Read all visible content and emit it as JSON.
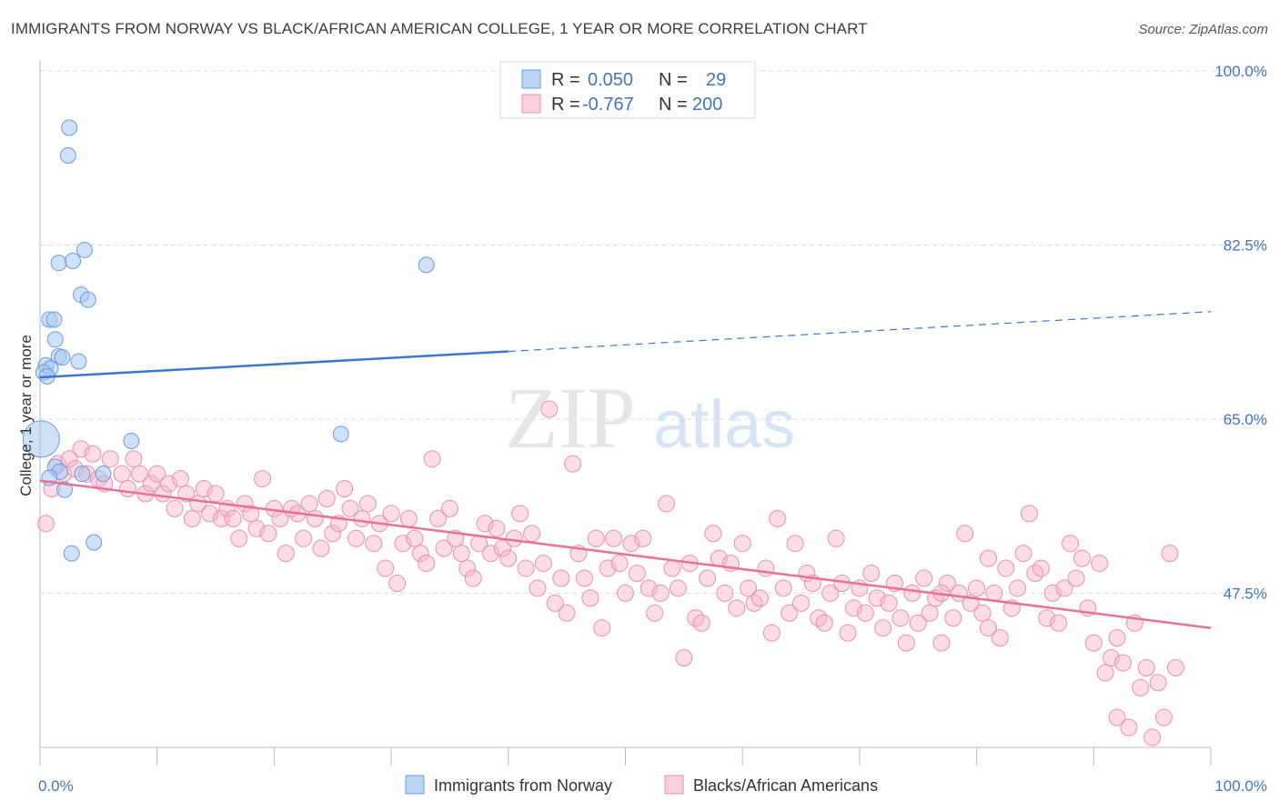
{
  "title": "IMMIGRANTS FROM NORWAY VS BLACK/AFRICAN AMERICAN COLLEGE, 1 YEAR OR MORE CORRELATION CHART",
  "source": "Source: ZipAtlas.com",
  "watermark": {
    "zip": "ZIP",
    "atlas": "atlas"
  },
  "legend": {
    "r_label": "R =",
    "n_label": "N =",
    "rows": [
      {
        "r": "0.050",
        "n": "29",
        "color": "#a9c8f0"
      },
      {
        "r": "-0.767",
        "n": "200",
        "color": "#f8b4c8"
      }
    ]
  },
  "bottom_legend": [
    "Immigrants from Norway",
    "Blacks/African Americans"
  ],
  "chart_data": {
    "type": "scatter",
    "title": "IMMIGRANTS FROM NORWAY VS BLACK/AFRICAN AMERICAN COLLEGE, 1 YEAR OR MORE CORRELATION CHART",
    "xlabel": "",
    "ylabel": "College, 1 year or more",
    "xlim": [
      0,
      100
    ],
    "ylim": [
      32,
      100
    ],
    "y_ticks": [
      47.5,
      65.0,
      82.5,
      100.0
    ],
    "y_tick_labels": [
      "47.5%",
      "65.0%",
      "82.5%",
      "100.0%"
    ],
    "x_tick_labels": [
      "0.0%",
      "100.0%"
    ],
    "grid": "horizontal dashed",
    "legend_position": "top-center",
    "series": [
      {
        "name": "Immigrants from Norway",
        "color": "#a9c8f0",
        "stroke": "#6a9be0",
        "r": 0.05,
        "n": 29,
        "trend": {
          "x0": 0,
          "y0": 69.2,
          "x1": 40,
          "y1": 71.8,
          "dash_x1": 100,
          "dash_y1": 75.8
        },
        "points": [
          [
            2.5,
            94.3
          ],
          [
            2.4,
            91.5
          ],
          [
            1.6,
            80.7
          ],
          [
            3.8,
            82.0
          ],
          [
            2.8,
            80.9
          ],
          [
            33,
            80.5
          ],
          [
            3.5,
            77.5
          ],
          [
            4.1,
            77.0
          ],
          [
            0.8,
            75.0
          ],
          [
            1.2,
            75.0
          ],
          [
            1.3,
            73.0
          ],
          [
            1.6,
            71.3
          ],
          [
            1.9,
            71.2
          ],
          [
            3.3,
            70.8
          ],
          [
            0.5,
            70.4
          ],
          [
            0.9,
            70.1
          ],
          [
            0.3,
            69.7
          ],
          [
            0.6,
            69.3
          ],
          [
            0.1,
            63.0
          ],
          [
            7.8,
            62.8
          ],
          [
            25.7,
            63.5
          ],
          [
            1.3,
            60.2
          ],
          [
            1.7,
            59.7
          ],
          [
            3.6,
            59.5
          ],
          [
            5.4,
            59.5
          ],
          [
            0.8,
            59.1
          ],
          [
            2.1,
            57.9
          ],
          [
            4.6,
            52.6
          ],
          [
            2.7,
            51.5
          ]
        ]
      },
      {
        "name": "Blacks/African Americans",
        "color": "#f8b4c8",
        "stroke": "#e890ac",
        "r": -0.767,
        "n": 200,
        "trend": {
          "x0": 0,
          "y0": 58.8,
          "x1": 100,
          "y1": 44.0
        },
        "points": [
          [
            0.5,
            54.5
          ],
          [
            1.0,
            58.0
          ],
          [
            1.5,
            60.5
          ],
          [
            2.0,
            59.5
          ],
          [
            2.5,
            61.0
          ],
          [
            3.0,
            60.0
          ],
          [
            3.5,
            62.0
          ],
          [
            4.0,
            59.5
          ],
          [
            4.5,
            61.5
          ],
          [
            5.0,
            59.0
          ],
          [
            5.5,
            58.5
          ],
          [
            6.0,
            61.0
          ],
          [
            7.0,
            59.5
          ],
          [
            7.5,
            58.0
          ],
          [
            8.0,
            61.0
          ],
          [
            8.5,
            59.5
          ],
          [
            9.0,
            57.5
          ],
          [
            9.5,
            58.5
          ],
          [
            10.0,
            59.5
          ],
          [
            10.5,
            57.5
          ],
          [
            11.0,
            58.5
          ],
          [
            11.5,
            56.0
          ],
          [
            12.0,
            59.0
          ],
          [
            12.5,
            57.5
          ],
          [
            13.0,
            55.0
          ],
          [
            13.5,
            56.5
          ],
          [
            14.0,
            58.0
          ],
          [
            14.5,
            55.5
          ],
          [
            15.0,
            57.5
          ],
          [
            15.5,
            55.0
          ],
          [
            16.0,
            56.0
          ],
          [
            16.5,
            55.0
          ],
          [
            17.0,
            53.0
          ],
          [
            17.5,
            56.5
          ],
          [
            18.0,
            55.5
          ],
          [
            18.5,
            54.0
          ],
          [
            19.0,
            59.0
          ],
          [
            19.5,
            53.5
          ],
          [
            20.0,
            56.0
          ],
          [
            20.5,
            55.0
          ],
          [
            21.0,
            51.5
          ],
          [
            21.5,
            56.0
          ],
          [
            22.0,
            55.5
          ],
          [
            22.5,
            53.0
          ],
          [
            23.0,
            56.5
          ],
          [
            23.5,
            55.0
          ],
          [
            24.0,
            52.0
          ],
          [
            24.5,
            57.0
          ],
          [
            25.0,
            53.5
          ],
          [
            25.5,
            54.5
          ],
          [
            26.0,
            58.0
          ],
          [
            26.5,
            56.0
          ],
          [
            27.0,
            53.0
          ],
          [
            27.5,
            55.0
          ],
          [
            28.0,
            56.5
          ],
          [
            28.5,
            52.5
          ],
          [
            29.0,
            54.5
          ],
          [
            29.5,
            50.0
          ],
          [
            30.0,
            55.5
          ],
          [
            30.5,
            48.5
          ],
          [
            31.0,
            52.5
          ],
          [
            31.5,
            55.0
          ],
          [
            32.0,
            53.0
          ],
          [
            32.5,
            51.5
          ],
          [
            33.0,
            50.5
          ],
          [
            33.5,
            61.0
          ],
          [
            34.0,
            55.0
          ],
          [
            34.5,
            52.0
          ],
          [
            35.0,
            56.0
          ],
          [
            35.5,
            53.0
          ],
          [
            36.0,
            51.5
          ],
          [
            36.5,
            50.0
          ],
          [
            37.0,
            49.0
          ],
          [
            37.5,
            52.5
          ],
          [
            38.0,
            54.5
          ],
          [
            38.5,
            51.5
          ],
          [
            39.0,
            54.0
          ],
          [
            39.5,
            52.0
          ],
          [
            40.0,
            51.0
          ],
          [
            40.5,
            53.0
          ],
          [
            41.0,
            55.5
          ],
          [
            41.5,
            50.0
          ],
          [
            42.0,
            53.5
          ],
          [
            42.5,
            48.0
          ],
          [
            43.0,
            50.5
          ],
          [
            43.5,
            66.0
          ],
          [
            44.0,
            46.5
          ],
          [
            44.5,
            49.0
          ],
          [
            45.0,
            45.5
          ],
          [
            45.5,
            60.5
          ],
          [
            46.0,
            51.5
          ],
          [
            46.5,
            49.0
          ],
          [
            47.0,
            47.0
          ],
          [
            47.5,
            53.0
          ],
          [
            48.0,
            44.0
          ],
          [
            48.5,
            50.0
          ],
          [
            49.0,
            53.0
          ],
          [
            49.5,
            50.5
          ],
          [
            50.0,
            47.5
          ],
          [
            50.5,
            52.5
          ],
          [
            51.0,
            49.5
          ],
          [
            51.5,
            53.0
          ],
          [
            52.0,
            48.0
          ],
          [
            52.5,
            45.5
          ],
          [
            53.0,
            47.5
          ],
          [
            53.5,
            56.5
          ],
          [
            54.0,
            50.0
          ],
          [
            54.5,
            48.0
          ],
          [
            55.0,
            41.0
          ],
          [
            55.5,
            50.5
          ],
          [
            56.0,
            45.0
          ],
          [
            56.5,
            44.5
          ],
          [
            57.0,
            49.0
          ],
          [
            57.5,
            53.5
          ],
          [
            58.0,
            51.0
          ],
          [
            58.5,
            47.5
          ],
          [
            59.0,
            50.5
          ],
          [
            59.5,
            46.0
          ],
          [
            60.0,
            52.5
          ],
          [
            60.5,
            48.0
          ],
          [
            61.0,
            46.5
          ],
          [
            61.5,
            47.0
          ],
          [
            62.0,
            50.0
          ],
          [
            62.5,
            43.5
          ],
          [
            63.0,
            55.0
          ],
          [
            63.5,
            48.0
          ],
          [
            64.0,
            45.5
          ],
          [
            64.5,
            52.5
          ],
          [
            65.0,
            46.5
          ],
          [
            65.5,
            49.5
          ],
          [
            66.0,
            48.5
          ],
          [
            66.5,
            45.0
          ],
          [
            67.0,
            44.5
          ],
          [
            67.5,
            47.5
          ],
          [
            68.0,
            53.0
          ],
          [
            68.5,
            48.5
          ],
          [
            69.0,
            43.5
          ],
          [
            69.5,
            46.0
          ],
          [
            70.0,
            48.0
          ],
          [
            70.5,
            45.5
          ],
          [
            71.0,
            49.5
          ],
          [
            71.5,
            47.0
          ],
          [
            72.0,
            44.0
          ],
          [
            72.5,
            46.5
          ],
          [
            73.0,
            48.5
          ],
          [
            73.5,
            45.0
          ],
          [
            74.0,
            42.5
          ],
          [
            74.5,
            47.5
          ],
          [
            75.0,
            44.5
          ],
          [
            75.5,
            49.0
          ],
          [
            76.0,
            45.5
          ],
          [
            76.5,
            47.0
          ],
          [
            77.0,
            42.5
          ],
          [
            77.5,
            48.5
          ],
          [
            78.0,
            45.0
          ],
          [
            78.5,
            47.5
          ],
          [
            79.0,
            53.5
          ],
          [
            79.5,
            46.5
          ],
          [
            80.0,
            48.0
          ],
          [
            80.5,
            45.5
          ],
          [
            81.0,
            44.0
          ],
          [
            81.5,
            47.5
          ],
          [
            82.0,
            43.0
          ],
          [
            82.5,
            50.0
          ],
          [
            83.0,
            46.0
          ],
          [
            83.5,
            48.0
          ],
          [
            84.0,
            51.5
          ],
          [
            84.5,
            55.5
          ],
          [
            85.0,
            49.5
          ],
          [
            85.5,
            50.0
          ],
          [
            86.0,
            45.0
          ],
          [
            86.5,
            47.5
          ],
          [
            87.0,
            44.5
          ],
          [
            87.5,
            48.0
          ],
          [
            88.0,
            52.5
          ],
          [
            88.5,
            49.0
          ],
          [
            89.0,
            51.0
          ],
          [
            89.5,
            46.0
          ],
          [
            90.0,
            42.5
          ],
          [
            90.5,
            50.5
          ],
          [
            91.0,
            39.5
          ],
          [
            91.5,
            41.0
          ],
          [
            92.0,
            35.0
          ],
          [
            92.5,
            40.5
          ],
          [
            93.0,
            34.0
          ],
          [
            93.5,
            44.5
          ],
          [
            94.0,
            38.0
          ],
          [
            94.5,
            40.0
          ],
          [
            95.0,
            33.0
          ],
          [
            95.5,
            38.5
          ],
          [
            96.0,
            35.0
          ],
          [
            96.5,
            51.5
          ],
          [
            97.0,
            40.0
          ],
          [
            92.0,
            43.0
          ],
          [
            81.0,
            51.0
          ],
          [
            77.0,
            47.5
          ]
        ]
      }
    ]
  }
}
